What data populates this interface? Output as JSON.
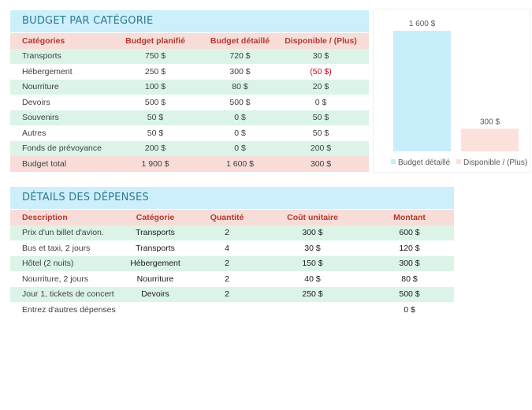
{
  "budget": {
    "title": "BUDGET PAR CATÉGORIE",
    "headers": [
      "Catégories",
      "Budget planifié",
      "Budget détaillé",
      "Disponible / (Plus)"
    ],
    "rows": [
      [
        "Transports",
        "750 $",
        "720 $",
        "30 $"
      ],
      [
        "Hébergement",
        "250 $",
        "300 $",
        "(50 $)"
      ],
      [
        "Nourriture",
        "100 $",
        "80 $",
        "20 $"
      ],
      [
        "Devoirs",
        "500 $",
        "500 $",
        "0 $"
      ],
      [
        "Souvenirs",
        "50 $",
        "0 $",
        "50 $"
      ],
      [
        "Autres",
        "50 $",
        "0 $",
        "50 $"
      ],
      [
        "Fonds de prévoyance",
        "200 $",
        "0 $",
        "200 $"
      ]
    ],
    "total": [
      "Budget total",
      "1 900 $",
      "1 600 $",
      "300 $"
    ]
  },
  "expenses": {
    "title": "DÉTAILS DES DÉPENSES",
    "headers": [
      "Description",
      "Catégorie",
      "Quantité",
      "Coût unitaire",
      "Montant"
    ],
    "rows": [
      [
        "Prix d'un billet d'avion.",
        "Transports",
        "2",
        "300 $",
        "600 $"
      ],
      [
        "Bus et taxi, 2 jours",
        "Transports",
        "4",
        "30 $",
        "120 $"
      ],
      [
        "Hôtel (2 nuits)",
        "Hébergement",
        "2",
        "150 $",
        "300 $"
      ],
      [
        "Nourriture, 2 jours",
        "Nourriture",
        "2",
        "40 $",
        "80 $"
      ],
      [
        "Jour 1, tickets de concert",
        "Devoirs",
        "2",
        "250 $",
        "500 $"
      ]
    ],
    "placeholder_row": [
      "Entrez d'autres dépenses",
      "",
      "",
      "",
      "0 $"
    ]
  },
  "chart_data": {
    "type": "bar",
    "categories": [
      "Budget détaillé",
      "Disponible / (Plus)"
    ],
    "values": [
      1600,
      300
    ],
    "data_labels": [
      "1 600 $",
      "300 $"
    ],
    "colors": [
      "#c9eefb",
      "#fbe0dc"
    ],
    "ylim": [
      0,
      1600
    ],
    "grid": false,
    "legend": "bottom",
    "legend_entries": [
      "Budget détaillé",
      "Disponible / (Plus)"
    ]
  }
}
